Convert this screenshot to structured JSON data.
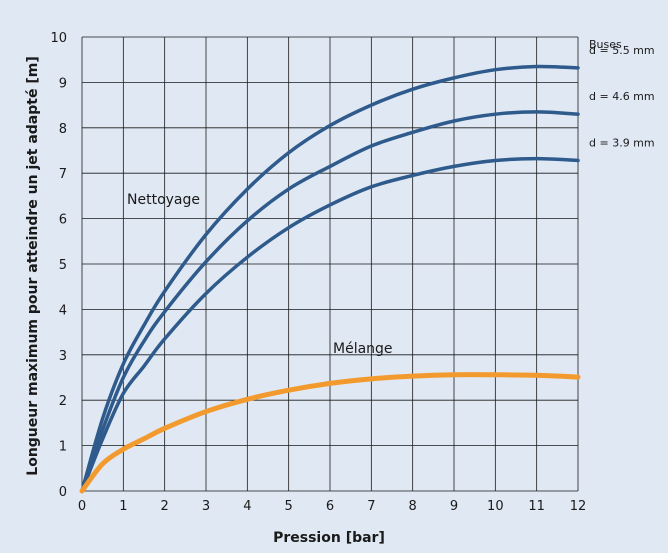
{
  "chart_data": {
    "type": "line",
    "xlabel": "Pression [bar]",
    "ylabel": "Longueur maximum pour atteindre un jet adapté [m]",
    "xlim": [
      0,
      12
    ],
    "ylim": [
      0,
      10
    ],
    "x_ticks": [
      "0",
      "1",
      "2",
      "3",
      "4",
      "5",
      "6",
      "7",
      "8",
      "9",
      "10",
      "11",
      "12"
    ],
    "y_ticks": [
      "0",
      "1",
      "2",
      "3",
      "4",
      "5",
      "6",
      "7",
      "8",
      "9",
      "10"
    ],
    "grid": true,
    "legend_title": "Buses",
    "annotations": [
      "Nettoyage",
      "Mélange"
    ],
    "colors": {
      "background": "#dfe8f3",
      "nettoyage": "#2e5a8c",
      "melange": "#f39a2e",
      "grid": "#1a1a1a"
    },
    "series": [
      {
        "name": "d = 5.5 mm",
        "x": [
          0,
          0.5,
          1,
          1.5,
          2,
          3,
          4,
          5,
          6,
          7,
          8,
          9,
          10,
          11,
          12
        ],
        "y": [
          0,
          1.6,
          2.8,
          3.65,
          4.4,
          5.65,
          6.65,
          7.45,
          8.05,
          8.5,
          8.85,
          9.1,
          9.28,
          9.35,
          9.32
        ]
      },
      {
        "name": "d = 4.6 mm",
        "x": [
          0,
          0.5,
          1,
          1.5,
          2,
          3,
          4,
          5,
          6,
          7,
          8,
          9,
          10,
          11,
          12
        ],
        "y": [
          0,
          1.35,
          2.5,
          3.3,
          3.95,
          5.05,
          5.95,
          6.65,
          7.15,
          7.6,
          7.9,
          8.15,
          8.3,
          8.35,
          8.3
        ]
      },
      {
        "name": "d = 3.9 mm",
        "x": [
          0,
          0.5,
          1,
          1.5,
          2,
          3,
          4,
          5,
          6,
          7,
          8,
          9,
          10,
          11,
          12
        ],
        "y": [
          0,
          1.15,
          2.15,
          2.75,
          3.35,
          4.35,
          5.15,
          5.8,
          6.3,
          6.7,
          6.95,
          7.15,
          7.28,
          7.32,
          7.28
        ]
      },
      {
        "name": "Mélange",
        "x": [
          0,
          0.5,
          1,
          1.5,
          2,
          3,
          4,
          5,
          6,
          7,
          8,
          9,
          10,
          11,
          12
        ],
        "y": [
          0,
          0.6,
          0.92,
          1.15,
          1.38,
          1.75,
          2.02,
          2.22,
          2.37,
          2.47,
          2.53,
          2.56,
          2.56,
          2.55,
          2.51
        ]
      }
    ]
  }
}
